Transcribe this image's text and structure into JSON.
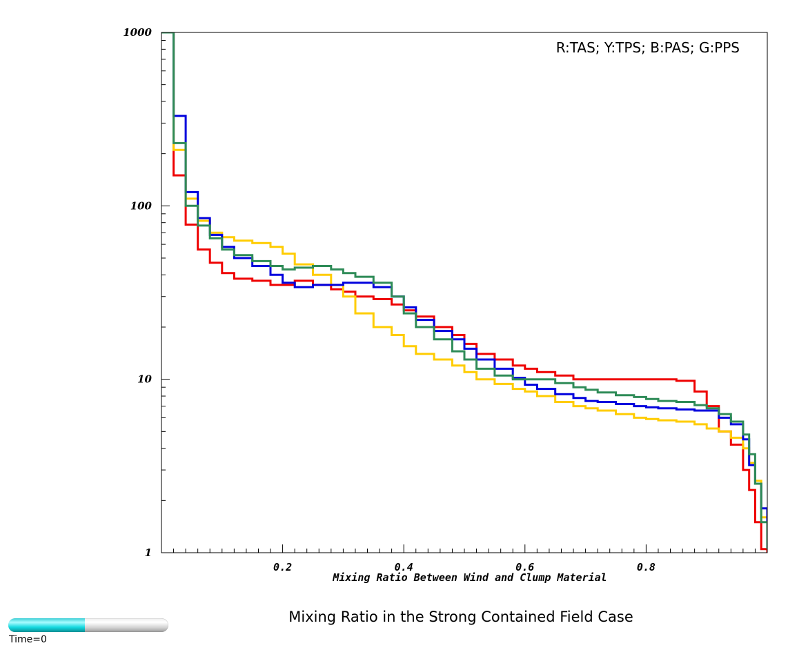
{
  "chart_data": {
    "type": "line",
    "step": true,
    "xlabel": "Mixing Ratio Between Wind and Clump Material",
    "ylabel": "",
    "xlim": [
      0.0,
      1.0
    ],
    "ylim": [
      1,
      1000
    ],
    "yscale": "log",
    "x_ticks": [
      "0.2",
      "0.4",
      "0.6",
      "0.8"
    ],
    "y_ticks": [
      "1",
      "10",
      "100",
      "1000"
    ],
    "legend_text": "R:TAS; Y:TPS; B:PAS; G:PPS",
    "legend_position": "top-right",
    "x": [
      0.0,
      0.02,
      0.04,
      0.06,
      0.08,
      0.1,
      0.12,
      0.15,
      0.18,
      0.2,
      0.22,
      0.25,
      0.28,
      0.3,
      0.32,
      0.35,
      0.38,
      0.4,
      0.42,
      0.45,
      0.48,
      0.5,
      0.52,
      0.55,
      0.58,
      0.6,
      0.62,
      0.65,
      0.68,
      0.7,
      0.72,
      0.75,
      0.78,
      0.8,
      0.82,
      0.85,
      0.88,
      0.9,
      0.92,
      0.94,
      0.96,
      0.97,
      0.98,
      0.99,
      1.0
    ],
    "series": [
      {
        "color": "#ee0000",
        "values": [
          1000,
          150,
          78,
          56,
          47,
          41,
          38,
          37,
          35,
          35,
          37,
          35,
          33,
          32,
          30,
          29,
          27,
          25,
          23,
          20,
          18,
          16,
          14,
          13,
          12,
          11.5,
          11,
          10.5,
          10,
          10,
          10,
          10,
          10,
          10,
          10,
          9.8,
          8.5,
          7,
          5,
          4.2,
          3,
          2.3,
          1.5,
          1.05,
          1.0
        ]
      },
      {
        "color": "#ffcc00",
        "values": [
          1000,
          210,
          110,
          82,
          70,
          66,
          63,
          61,
          58,
          53,
          46,
          40,
          35,
          30,
          24,
          20,
          18,
          15.5,
          14,
          13,
          12,
          11,
          10,
          9.4,
          8.8,
          8.5,
          8,
          7.4,
          7,
          6.8,
          6.6,
          6.3,
          6,
          5.9,
          5.8,
          5.7,
          5.5,
          5.2,
          5,
          4.6,
          4,
          3.3,
          2.6,
          1.6,
          1.05
        ]
      },
      {
        "color": "#0000dd",
        "values": [
          1000,
          330,
          120,
          85,
          68,
          58,
          50,
          45,
          40,
          36,
          34,
          35,
          35,
          36,
          36,
          34,
          30,
          26,
          22,
          19,
          17,
          15,
          13,
          11.5,
          10.2,
          9.3,
          8.8,
          8.2,
          7.8,
          7.5,
          7.4,
          7.2,
          7,
          6.9,
          6.8,
          6.7,
          6.6,
          6.6,
          6,
          5.5,
          4.5,
          3.2,
          2.5,
          1.8,
          1.3
        ]
      },
      {
        "color": "#2e8b57",
        "values": [
          1000,
          230,
          100,
          77,
          65,
          56,
          52,
          48,
          45,
          43,
          44,
          45,
          43,
          41,
          39,
          36,
          30,
          24,
          20,
          17,
          14.5,
          13,
          11.5,
          10.5,
          10,
          10,
          10,
          9.5,
          9,
          8.7,
          8.4,
          8.1,
          7.9,
          7.7,
          7.5,
          7.4,
          7.1,
          6.8,
          6.3,
          5.7,
          4.8,
          3.7,
          2.5,
          1.5,
          1.05
        ]
      }
    ]
  },
  "caption": "Mixing Ratio in the Strong Contained Field Case",
  "time_slider": {
    "label": "Time=0",
    "fill_fraction": 0.48,
    "fill_color": "#16d9e0"
  }
}
